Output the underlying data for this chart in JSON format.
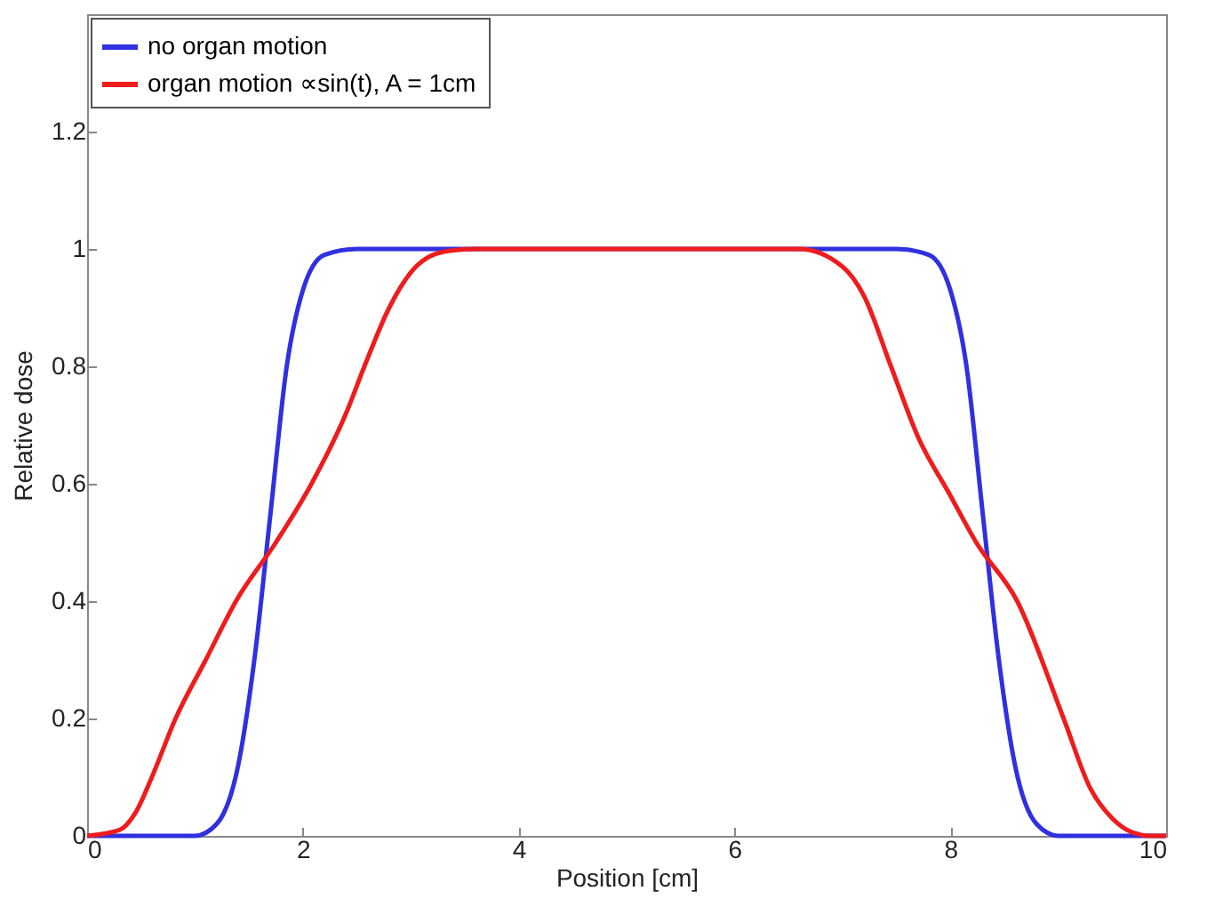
{
  "chart_data": {
    "type": "line",
    "xlabel": "Position [cm]",
    "ylabel": "Relative dose",
    "xlim": [
      0,
      10
    ],
    "xticks": [
      0,
      2,
      4,
      6,
      8,
      10
    ],
    "ylim": [
      0,
      1.4
    ],
    "yticks": [
      0,
      0.2,
      0.4,
      0.6,
      0.8,
      1,
      1.2
    ],
    "grid": false,
    "legend": "top left",
    "line_style": "solid",
    "series": [
      {
        "name": "no organ motion",
        "color": "#3030e0",
        "x": [
          0,
          1,
          1.2,
          1.4,
          1.55,
          1.7,
          1.85,
          2,
          2.2,
          2.5,
          3,
          7.5,
          7.8,
          8,
          8.15,
          8.3,
          8.45,
          8.6,
          8.8,
          9,
          10
        ],
        "values": [
          0,
          0,
          0.02,
          0.12,
          0.3,
          0.55,
          0.8,
          0.93,
          0.99,
          1,
          1,
          1,
          0.99,
          0.93,
          0.8,
          0.55,
          0.3,
          0.12,
          0.02,
          0,
          0
        ]
      },
      {
        "name": "organ motion ∝sin(t), A = 1cm",
        "color": "#ee1c1c",
        "x": [
          0,
          0.3,
          0.45,
          0.6,
          0.82,
          1.1,
          1.38,
          1.75,
          2.08,
          2.4,
          2.57,
          2.8,
          3,
          3.3,
          3.6,
          6.6,
          7,
          7.2,
          7.45,
          7.7,
          8,
          8.24,
          8.62,
          9.05,
          9.3,
          9.5,
          9.7,
          9.85,
          10
        ],
        "values": [
          0,
          0.01,
          0.04,
          0.1,
          0.2,
          0.3,
          0.4,
          0.5,
          0.6,
          0.72,
          0.8,
          0.9,
          0.96,
          0.995,
          1,
          1,
          0.97,
          0.92,
          0.8,
          0.68,
          0.58,
          0.5,
          0.4,
          0.2,
          0.08,
          0.03,
          0.005,
          0,
          0
        ]
      }
    ]
  }
}
